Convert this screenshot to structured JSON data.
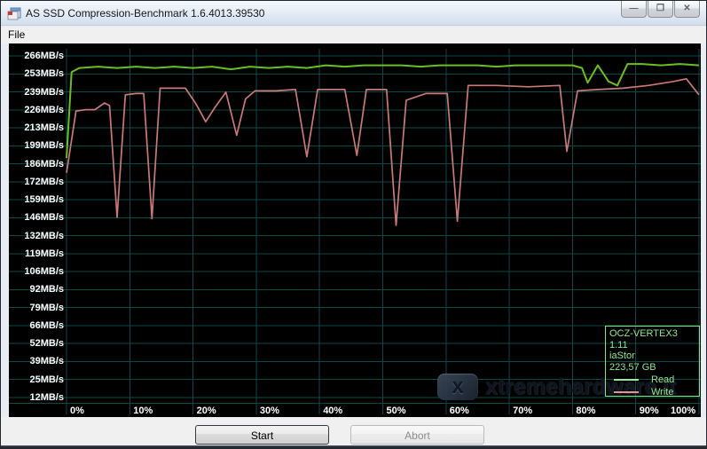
{
  "window": {
    "title": "AS SSD Compression-Benchmark 1.6.4013.39530",
    "controls": {
      "minimize_glyph": "—",
      "maximize_glyph": "❐",
      "close_glyph": "✕"
    }
  },
  "menu": {
    "items": [
      {
        "label": "File"
      }
    ]
  },
  "buttons": {
    "start_label": "Start",
    "abort_label": "Abort"
  },
  "watermark": {
    "text": "xtremehardware.it",
    "badge_glyph": "x"
  },
  "chart_data": {
    "type": "line",
    "title": "",
    "background": "#000000",
    "grid": true,
    "grid_color": "#0d4949",
    "x_ticks": [
      "0%",
      "10%",
      "20%",
      "30%",
      "40%",
      "50%",
      "60%",
      "70%",
      "80%",
      "90%",
      "100%"
    ],
    "x_range_pct": [
      0,
      100
    ],
    "y_ticks": [
      "266MB/s",
      "253MB/s",
      "239MB/s",
      "226MB/s",
      "213MB/s",
      "199MB/s",
      "186MB/s",
      "172MB/s",
      "159MB/s",
      "146MB/s",
      "132MB/s",
      "119MB/s",
      "106MB/s",
      "92MB/s",
      "79MB/s",
      "66MB/s",
      "52MB/s",
      "39MB/s",
      "25MB/s",
      "12MB/s"
    ],
    "y_range": [
      12,
      266
    ],
    "legend": {
      "position": "bottom-right",
      "device": "OCZ-VERTEX3",
      "firmware": "1.11",
      "driver": "iaStor",
      "capacity": "223,57 GB",
      "entries": [
        {
          "label": "Read",
          "sample_color": "#90ee90"
        },
        {
          "label": "Write",
          "sample_color": "#e89494"
        }
      ]
    },
    "series": [
      {
        "name": "Read",
        "color": "#6abf20",
        "width": 2,
        "points": [
          [
            0,
            190
          ],
          [
            0.8,
            254
          ],
          [
            2,
            257
          ],
          [
            5,
            258
          ],
          [
            8,
            257
          ],
          [
            11,
            258
          ],
          [
            14,
            257
          ],
          [
            17,
            258
          ],
          [
            20,
            257
          ],
          [
            23,
            258
          ],
          [
            26,
            256
          ],
          [
            29,
            258
          ],
          [
            32,
            257
          ],
          [
            35,
            258
          ],
          [
            38,
            257
          ],
          [
            41,
            259
          ],
          [
            44,
            258
          ],
          [
            47,
            259
          ],
          [
            50,
            259
          ],
          [
            53,
            259
          ],
          [
            56,
            258
          ],
          [
            59,
            259
          ],
          [
            62,
            259
          ],
          [
            65,
            259
          ],
          [
            68,
            258
          ],
          [
            71,
            259
          ],
          [
            74,
            259
          ],
          [
            77,
            259
          ],
          [
            80,
            259
          ],
          [
            81.5,
            257
          ],
          [
            82.4,
            246
          ],
          [
            84,
            259
          ],
          [
            85.7,
            247
          ],
          [
            87.1,
            244
          ],
          [
            88.7,
            260
          ],
          [
            91,
            260
          ],
          [
            94,
            259
          ],
          [
            97,
            260
          ],
          [
            100,
            259
          ]
        ]
      },
      {
        "name": "Write",
        "color": "#cb7878",
        "width": 1.7,
        "points": [
          [
            0,
            179
          ],
          [
            1.5,
            225
          ],
          [
            3,
            226
          ],
          [
            4.5,
            226
          ],
          [
            6,
            231
          ],
          [
            6.8,
            229
          ],
          [
            8,
            146
          ],
          [
            9.3,
            237
          ],
          [
            11,
            238
          ],
          [
            12.2,
            238
          ],
          [
            13.5,
            145
          ],
          [
            14.8,
            242
          ],
          [
            18.8,
            242
          ],
          [
            20.5,
            230
          ],
          [
            22,
            217
          ],
          [
            23.5,
            228
          ],
          [
            25.2,
            239
          ],
          [
            26.9,
            207
          ],
          [
            28.3,
            234
          ],
          [
            29.8,
            240
          ],
          [
            33,
            240
          ],
          [
            36.2,
            241
          ],
          [
            38,
            191
          ],
          [
            39.7,
            241
          ],
          [
            44,
            241
          ],
          [
            45.9,
            192
          ],
          [
            47.4,
            241
          ],
          [
            50.6,
            241
          ],
          [
            52.1,
            140
          ],
          [
            53.7,
            233
          ],
          [
            56.8,
            238
          ],
          [
            60.2,
            238
          ],
          [
            61.8,
            143
          ],
          [
            63.5,
            244
          ],
          [
            68,
            244
          ],
          [
            73,
            243
          ],
          [
            78,
            244
          ],
          [
            79.1,
            195
          ],
          [
            80.8,
            240
          ],
          [
            84,
            241
          ],
          [
            88,
            242
          ],
          [
            92,
            244
          ],
          [
            96,
            247
          ],
          [
            98,
            249
          ],
          [
            100,
            237
          ]
        ]
      }
    ]
  }
}
